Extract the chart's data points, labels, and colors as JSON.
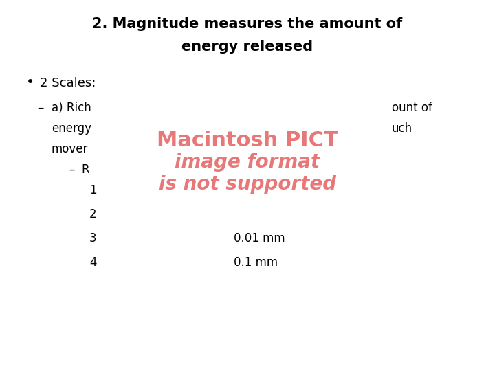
{
  "title_line1": "2. Magnitude measures the amount of",
  "title_line2": "energy released",
  "bullet1": "2 Scales:",
  "sub_bullet_dash": "–",
  "sub_bullet_text1": "a) Rich",
  "sub_bullet_text1_right": "ount of",
  "sub_bullet_text2_left": "energy",
  "sub_bullet_text2_right": "uch",
  "sub_bullet_text3": "mover",
  "sub_sub_dash": "–",
  "sub_sub_text": "R",
  "table_rows": [
    {
      "num": "1",
      "value": ""
    },
    {
      "num": "2",
      "value": ""
    },
    {
      "num": "3",
      "value": "0.01 mm"
    },
    {
      "num": "4",
      "value": "0.1 mm"
    }
  ],
  "pict_text_lines": [
    "Macintosh PICT",
    "image format",
    "is not supported"
  ],
  "pict_color": "#E87878",
  "background_color": "#ffffff",
  "text_color": "#000000",
  "title_fontsize": 15,
  "body_fontsize": 13,
  "sub_fontsize": 12,
  "pict_fontsize": [
    22,
    20,
    20
  ]
}
